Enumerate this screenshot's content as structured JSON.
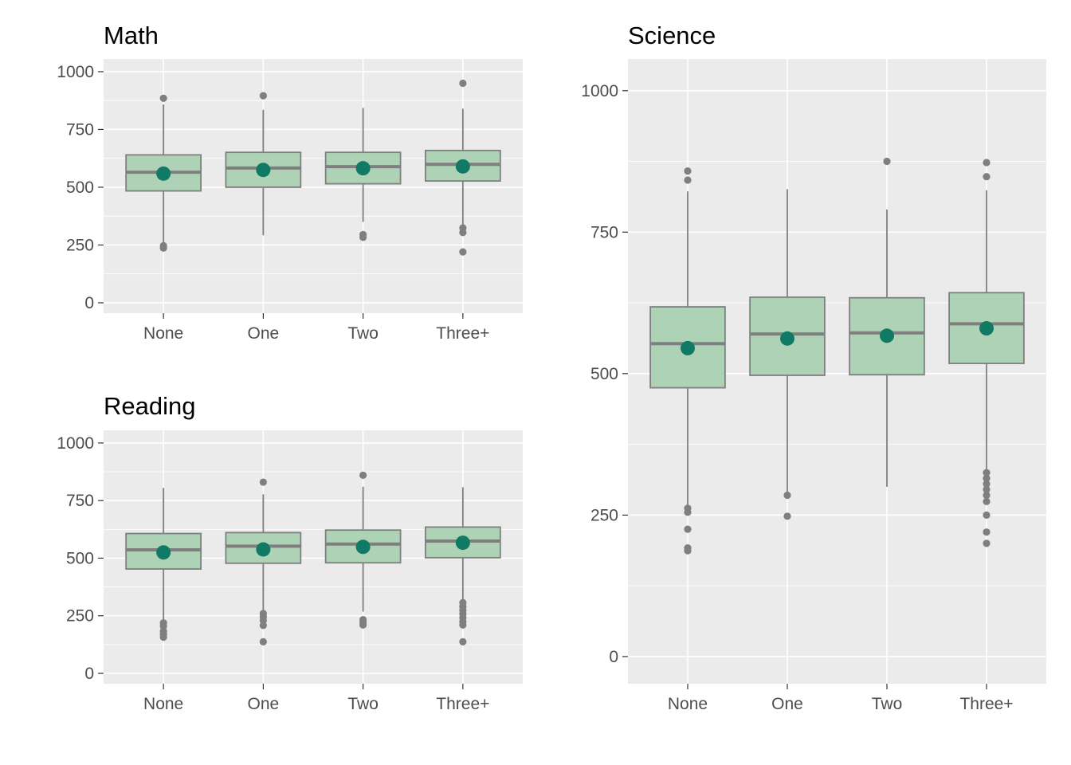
{
  "colors": {
    "box_fill": "#aed2b6",
    "box_line": "#7f7f7f",
    "mean_point": "#117a65",
    "panel_bg": "#ebebeb"
  },
  "chart_data": [
    {
      "type": "boxplot",
      "title": "Math",
      "categories": [
        "None",
        "One",
        "Two",
        "Three+"
      ],
      "ylim": [
        -45,
        1055
      ],
      "yticks": [
        0,
        250,
        500,
        750,
        1000
      ],
      "grid": true,
      "boxes": [
        {
          "category": "None",
          "lower_whisker": 262,
          "q1": 484,
          "median": 565,
          "q3": 640,
          "upper_whisker": 858,
          "mean": 559,
          "outliers": [
            885,
            247,
            237
          ]
        },
        {
          "category": "One",
          "lower_whisker": 292,
          "q1": 500,
          "median": 583,
          "q3": 651,
          "upper_whisker": 835,
          "mean": 575,
          "outliers": [
            896
          ]
        },
        {
          "category": "Two",
          "lower_whisker": 350,
          "q1": 515,
          "median": 589,
          "q3": 651,
          "upper_whisker": 843,
          "mean": 582,
          "outliers": [
            295,
            283
          ]
        },
        {
          "category": "Three+",
          "lower_whisker": 338,
          "q1": 527,
          "median": 599,
          "q3": 659,
          "upper_whisker": 840,
          "mean": 590,
          "outliers": [
            950,
            324,
            304,
            220
          ]
        }
      ]
    },
    {
      "type": "boxplot",
      "title": "Reading",
      "categories": [
        "None",
        "One",
        "Two",
        "Three+"
      ],
      "ylim": [
        -45,
        1055
      ],
      "yticks": [
        0,
        250,
        500,
        750,
        1000
      ],
      "grid": true,
      "boxes": [
        {
          "category": "None",
          "lower_whisker": 230,
          "q1": 453,
          "median": 536,
          "q3": 607,
          "upper_whisker": 805,
          "mean": 525,
          "outliers": [
            219,
            205,
            183,
            169,
            157
          ]
        },
        {
          "category": "One",
          "lower_whisker": 270,
          "q1": 478,
          "median": 552,
          "q3": 611,
          "upper_whisker": 777,
          "mean": 538,
          "outliers": [
            830,
            260,
            246,
            230,
            208,
            137
          ]
        },
        {
          "category": "Two",
          "lower_whisker": 268,
          "q1": 480,
          "median": 561,
          "q3": 622,
          "upper_whisker": 810,
          "mean": 549,
          "outliers": [
            860,
            233,
            220,
            210
          ]
        },
        {
          "category": "Three+",
          "lower_whisker": 320,
          "q1": 502,
          "median": 574,
          "q3": 635,
          "upper_whisker": 808,
          "mean": 567,
          "outliers": [
            307,
            290,
            274,
            258,
            242,
            225,
            210,
            137
          ]
        }
      ]
    },
    {
      "type": "boxplot",
      "title": "Science",
      "categories": [
        "None",
        "One",
        "Two",
        "Three+"
      ],
      "ylim": [
        -48,
        1056
      ],
      "yticks": [
        0,
        250,
        500,
        750,
        1000
      ],
      "grid": true,
      "boxes": [
        {
          "category": "None",
          "lower_whisker": 265,
          "q1": 475,
          "median": 553,
          "q3": 618,
          "upper_whisker": 822,
          "mean": 545,
          "outliers": [
            858,
            842,
            262,
            255,
            225,
            192,
            187
          ]
        },
        {
          "category": "One",
          "lower_whisker": 290,
          "q1": 497,
          "median": 570,
          "q3": 635,
          "upper_whisker": 826,
          "mean": 562,
          "outliers": [
            285,
            248
          ]
        },
        {
          "category": "Two",
          "lower_whisker": 300,
          "q1": 498,
          "median": 572,
          "q3": 634,
          "upper_whisker": 790,
          "mean": 567,
          "outliers": [
            875
          ]
        },
        {
          "category": "Three+",
          "lower_whisker": 330,
          "q1": 518,
          "median": 588,
          "q3": 643,
          "upper_whisker": 824,
          "mean": 580,
          "outliers": [
            873,
            848,
            325,
            315,
            305,
            295,
            285,
            274,
            250,
            220,
            200
          ]
        }
      ]
    }
  ]
}
